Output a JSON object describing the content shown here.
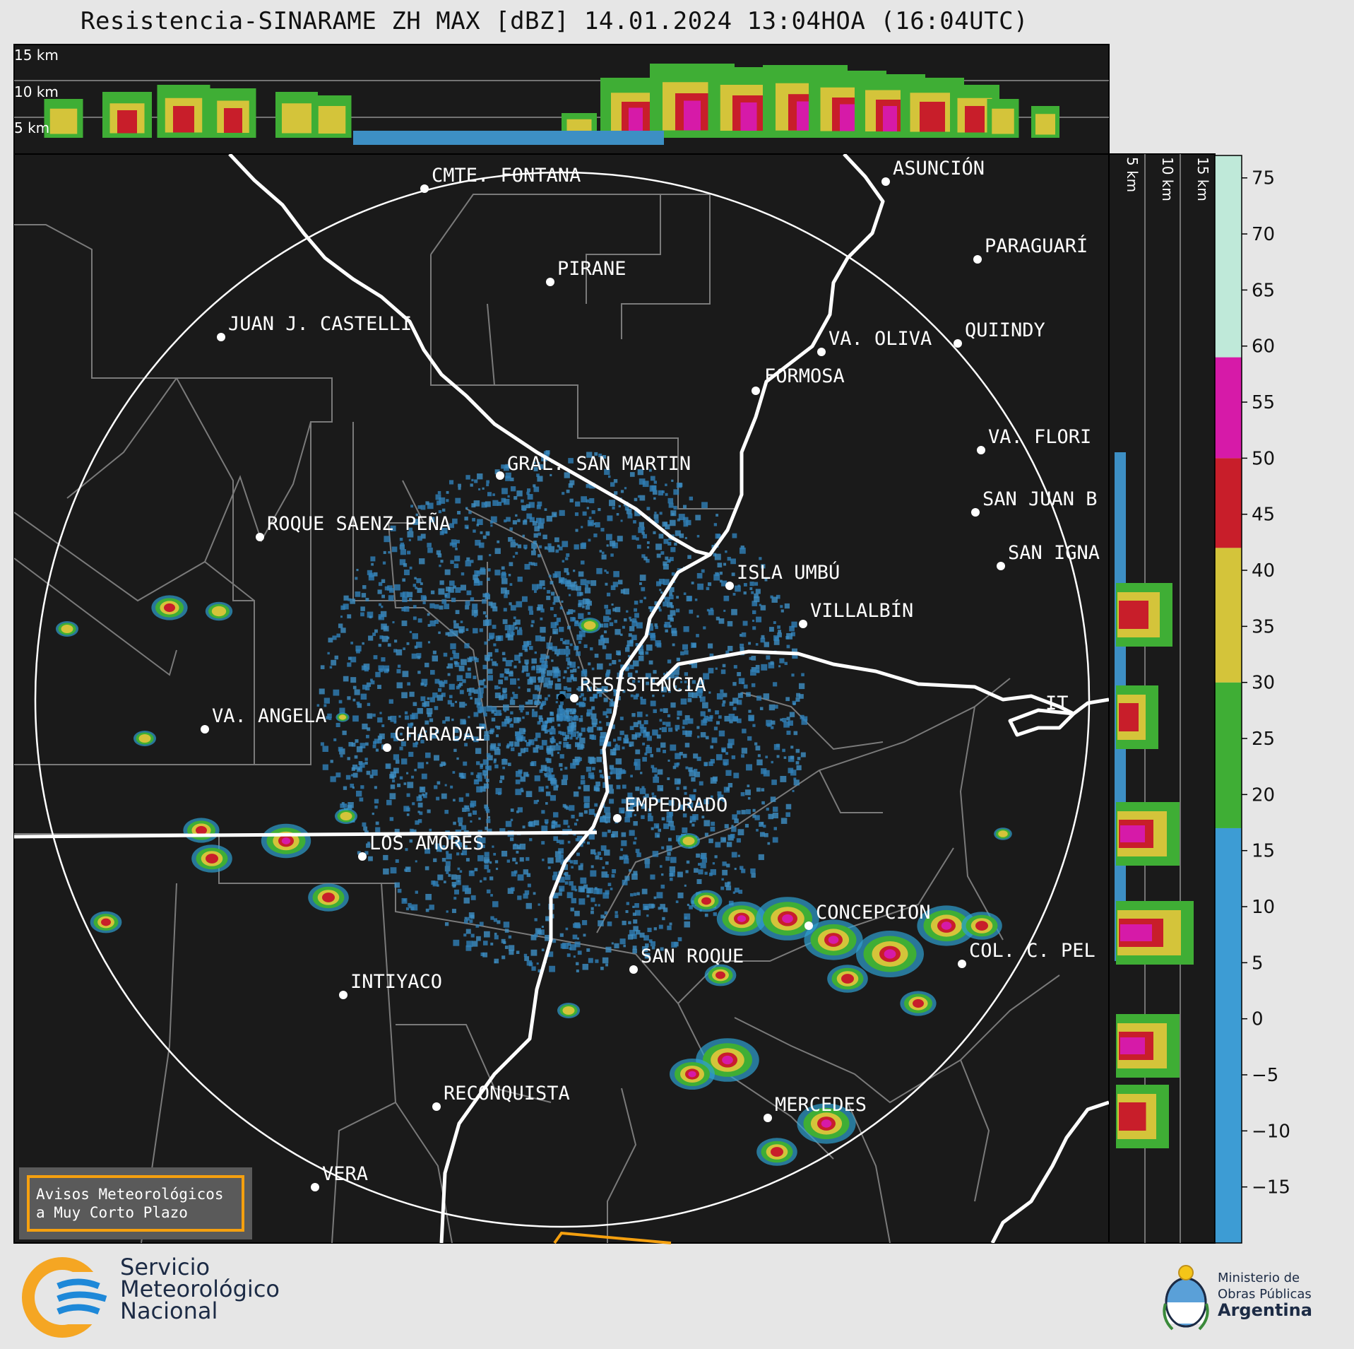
{
  "title": "Resistencia-SINARAME ZH MAX [dBZ] 14.01.2024 13:04HOA (16:04UTC)",
  "height_panel": {
    "top_labels": [
      "15 km",
      "10 km",
      "5 km"
    ],
    "side_labels": [
      "5 km",
      "10 km",
      "15 km"
    ]
  },
  "cities": [
    {
      "name": "CMTE. FONTANA"
    },
    {
      "name": "ASUNCIÓN"
    },
    {
      "name": "PIRANE"
    },
    {
      "name": "PARAGUARÍ"
    },
    {
      "name": "JUAN J. CASTELLI"
    },
    {
      "name": "VA. OLIVA"
    },
    {
      "name": "QUIINDY"
    },
    {
      "name": "FORMOSA"
    },
    {
      "name": "VA. FLORI"
    },
    {
      "name": "GRAL. SAN MARTIN"
    },
    {
      "name": "SAN JUAN B"
    },
    {
      "name": "ROQUE SAENZ PEÑA"
    },
    {
      "name": "SAN IGNA"
    },
    {
      "name": "ISLA UMBÚ"
    },
    {
      "name": "VILLALBÍN"
    },
    {
      "name": "RESISTENCIA"
    },
    {
      "name": "VA. ANGELA"
    },
    {
      "name": "CHARADAI"
    },
    {
      "name": "IT"
    },
    {
      "name": "EMPEDRADO"
    },
    {
      "name": "LOS AMORES"
    },
    {
      "name": "CONCEPCION"
    },
    {
      "name": "SAN ROQUE"
    },
    {
      "name": "COL. C. PEL"
    },
    {
      "name": "INTIYACO"
    },
    {
      "name": "RECONQUISTA"
    },
    {
      "name": "MERCEDES"
    },
    {
      "name": "VERA"
    }
  ],
  "warning_box": {
    "line1": "Avisos Meteorológicos",
    "line2": "a Muy Corto Plazo"
  },
  "colorbar": {
    "unit": "dBZ",
    "min": -20,
    "max": 77,
    "ticks": [
      "75",
      "70",
      "65",
      "60",
      "55",
      "50",
      "45",
      "40",
      "35",
      "30",
      "25",
      "20",
      "15",
      "10",
      "5",
      "0",
      "−5",
      "−10",
      "−15"
    ],
    "tick_values": [
      75,
      70,
      65,
      60,
      55,
      50,
      45,
      40,
      35,
      30,
      25,
      20,
      15,
      10,
      5,
      0,
      -5,
      -10,
      -15
    ],
    "bands": [
      {
        "from": -20,
        "to": 17,
        "color": "#3d9cd4"
      },
      {
        "from": 17,
        "to": 30,
        "color": "#3fae35"
      },
      {
        "from": 30,
        "to": 42,
        "color": "#d4c43a"
      },
      {
        "from": 42,
        "to": 50,
        "color": "#c81e2a"
      },
      {
        "from": 50,
        "to": 59,
        "color": "#d61aa8"
      },
      {
        "from": 59,
        "to": 77,
        "color": "#bfe9d9"
      }
    ]
  },
  "colors": {
    "background": "#1a1a1a",
    "border": "#ffffff",
    "admin_lines": "#7a7a7a",
    "page": "#e6e6e6",
    "warning_outline": "#f5a00f"
  },
  "footer": {
    "smn": [
      "Servicio",
      "Meteorológico",
      "Nacional"
    ],
    "ministry": [
      "Ministerio de",
      "Obras Públicas",
      "Argentina"
    ]
  }
}
